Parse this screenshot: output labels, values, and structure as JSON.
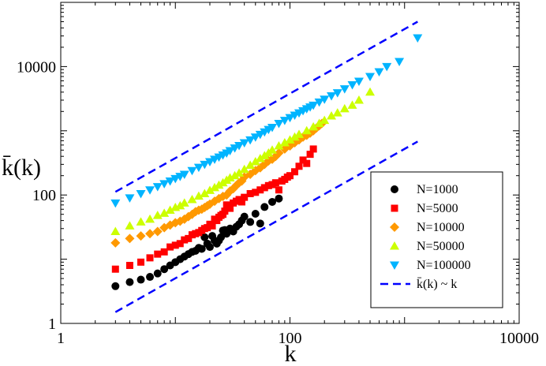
{
  "chart_data": {
    "type": "scatter",
    "title": "",
    "xlabel": "k",
    "ylabel": "k̄(k)",
    "xscale": "log",
    "yscale": "log",
    "xlim": [
      1,
      10000
    ],
    "ylim": [
      1,
      100000
    ],
    "x_ticks": [
      1,
      100,
      10000
    ],
    "x_tick_labels": [
      "1",
      "100",
      "10000"
    ],
    "y_ticks": [
      1,
      100,
      10000
    ],
    "y_tick_labels": [
      "1",
      "100",
      "10000"
    ],
    "grid": false,
    "legend_position": "bottom-right",
    "series": [
      {
        "name": "N=1000",
        "marker": "circle",
        "color": "#000000",
        "x": [
          3,
          4,
          5,
          6,
          7,
          8,
          9,
          10,
          11,
          12,
          13,
          14,
          15,
          16,
          17,
          18,
          19,
          20,
          21,
          22,
          23,
          24,
          25,
          26,
          27,
          28,
          30,
          32,
          34,
          36,
          38,
          40,
          45,
          50,
          55,
          60,
          70,
          80
        ],
        "y": [
          3.8,
          4.4,
          4.8,
          5.3,
          6.0,
          7.0,
          8.0,
          9.0,
          10.0,
          11.0,
          12.0,
          13.0,
          13.5,
          15.0,
          14.5,
          22.0,
          17.5,
          15.5,
          23.0,
          19.5,
          17.5,
          19.5,
          22.0,
          28.0,
          28.5,
          25.0,
          30.0,
          27.0,
          32.0,
          35.0,
          40.0,
          46.0,
          38.0,
          51.0,
          36.0,
          65.0,
          78.0,
          88.0
        ]
      },
      {
        "name": "N=5000",
        "marker": "square",
        "color": "#ff0000",
        "x": [
          3,
          4,
          5,
          6,
          7,
          8,
          9,
          10,
          11,
          12,
          13,
          14,
          15,
          16,
          17,
          18,
          19,
          20,
          21,
          22,
          23,
          24,
          25,
          26,
          27,
          28,
          30,
          32,
          34,
          36,
          38,
          40,
          45,
          50,
          55,
          60,
          65,
          70,
          75,
          80,
          85,
          90,
          95,
          100,
          110,
          120,
          130,
          140,
          150,
          160
        ],
        "y": [
          7.0,
          8.0,
          9.0,
          10.5,
          12.0,
          13.0,
          15.5,
          16.5,
          17.5,
          20.0,
          21.0,
          24.0,
          25.0,
          26.0,
          28.0,
          30.0,
          31.0,
          35.0,
          33.0,
          42.0,
          40.0,
          45.0,
          48.0,
          50.0,
          56.0,
          70.0,
          62.0,
          75.0,
          80.0,
          85.0,
          78.0,
          92.0,
          105.0,
          110.0,
          120.0,
          130.0,
          140.0,
          145.0,
          155.0,
          120.0,
          165.0,
          175.0,
          190.0,
          200.0,
          230.0,
          280.0,
          350.0,
          310.0,
          430.0,
          520.0
        ]
      },
      {
        "name": "N=10000",
        "marker": "diamond",
        "color": "#ff9900",
        "x": [
          3,
          4,
          5,
          6,
          7,
          8,
          9,
          10,
          11,
          12,
          13,
          14,
          15,
          16,
          17,
          18,
          19,
          20,
          22,
          24,
          26,
          28,
          30,
          32,
          34,
          36,
          38,
          40,
          45,
          50,
          55,
          60,
          65,
          70,
          75,
          80,
          90,
          100,
          110,
          120,
          130,
          140,
          150,
          160,
          170,
          180,
          190
        ],
        "y": [
          18.0,
          21.0,
          23.0,
          25.0,
          27.0,
          31.0,
          34.0,
          37.0,
          39.0,
          42.0,
          46.0,
          50.0,
          55.0,
          58.0,
          60.0,
          64.0,
          68.0,
          72.0,
          80.0,
          88.0,
          95.0,
          100.0,
          115.0,
          125.0,
          140.0,
          155.0,
          165.0,
          190.0,
          210.0,
          240.0,
          265.0,
          300.0,
          340.0,
          360.0,
          400.0,
          450.0,
          520.0,
          580.0,
          650.0,
          720.0,
          800.0,
          850.0,
          920.0,
          1000.0,
          1100.0,
          1200.0,
          1300.0
        ]
      },
      {
        "name": "N=50000",
        "marker": "triangle-up",
        "color": "#ccff00",
        "x": [
          3,
          4,
          5,
          6,
          7,
          8,
          9,
          10,
          11,
          12,
          14,
          16,
          18,
          20,
          22,
          24,
          26,
          28,
          30,
          33,
          36,
          40,
          45,
          50,
          55,
          60,
          65,
          70,
          80,
          90,
          100,
          110,
          120,
          140,
          160,
          180,
          200,
          230,
          260,
          300,
          350,
          400,
          500
        ],
        "y": [
          27.0,
          33.0,
          38.0,
          42.0,
          48.0,
          52.0,
          58.0,
          64.0,
          68.0,
          75.0,
          85.0,
          96.0,
          105.0,
          118.0,
          130.0,
          142.0,
          155.0,
          170.0,
          185.0,
          200.0,
          220.0,
          250.0,
          290.0,
          330.0,
          370.0,
          410.0,
          450.0,
          500.0,
          580.0,
          650.0,
          720.0,
          800.0,
          880.0,
          1000.0,
          1150.0,
          1300.0,
          1450.0,
          1700.0,
          1900.0,
          2200.0,
          2500.0,
          3000.0,
          4000.0
        ]
      },
      {
        "name": "N=100000",
        "marker": "triangle-down",
        "color": "#00b4ff",
        "x": [
          3,
          4,
          5,
          6,
          7,
          8,
          9,
          10,
          11,
          12,
          14,
          16,
          18,
          20,
          22,
          24,
          26,
          28,
          30,
          33,
          36,
          40,
          45,
          50,
          55,
          60,
          65,
          70,
          80,
          90,
          100,
          110,
          120,
          130,
          140,
          150,
          160,
          180,
          200,
          230,
          260,
          300,
          350,
          400,
          500,
          600,
          700,
          900,
          1300
        ],
        "y": [
          75.0,
          90.0,
          105.0,
          120.0,
          135.0,
          150.0,
          165.0,
          180.0,
          195.0,
          210.0,
          240.0,
          270.0,
          300.0,
          330.0,
          360.0,
          390.0,
          420.0,
          450.0,
          490.0,
          540.0,
          590.0,
          650.0,
          720.0,
          800.0,
          880.0,
          960.0,
          1050.0,
          1130.0,
          1300.0,
          1450.0,
          1600.0,
          1750.0,
          1900.0,
          2050.0,
          2200.0,
          2350.0,
          2500.0,
          2800.0,
          3100.0,
          3500.0,
          3900.0,
          4500.0,
          5200.0,
          5900.0,
          7000.0,
          8300.0,
          10000.0,
          12000.0,
          28000.0
        ]
      }
    ],
    "reference_lines": {
      "name": "k̄(k) ~ k",
      "style": "dashed",
      "color": "#0000ff",
      "lines": [
        {
          "x": [
            3,
            1300
          ],
          "y": [
            112,
            50000
          ]
        },
        {
          "x": [
            3,
            1300
          ],
          "y": [
            1.5,
            680
          ]
        }
      ]
    }
  }
}
